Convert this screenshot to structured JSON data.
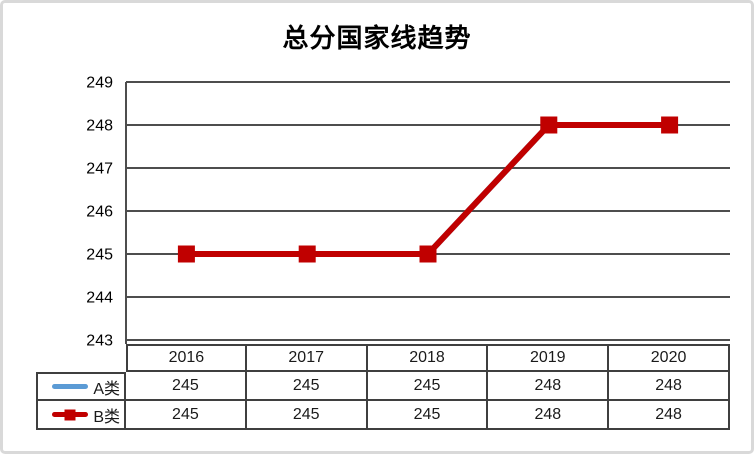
{
  "chart_data": {
    "type": "line",
    "title": "总分国家线趋势",
    "categories": [
      "2016",
      "2017",
      "2018",
      "2019",
      "2020"
    ],
    "series": [
      {
        "name": "A类",
        "values": [
          245,
          245,
          245,
          248,
          248
        ],
        "color": "#5B9BD5",
        "marker": "none"
      },
      {
        "name": "B类",
        "values": [
          245,
          245,
          245,
          248,
          248
        ],
        "color": "#C00000",
        "marker": "square"
      }
    ],
    "ylim": [
      243,
      249
    ],
    "yticks": [
      249,
      248,
      247,
      246,
      245,
      244,
      243
    ],
    "xlabel": "",
    "ylabel": "",
    "grid": true,
    "legend_position": "data-table-left",
    "data_table": true
  },
  "colors": {
    "gridline": "#4d4d4d",
    "table_border": "#3f3f3f",
    "frame_border": "#d9d9d9",
    "text": "#000000"
  }
}
